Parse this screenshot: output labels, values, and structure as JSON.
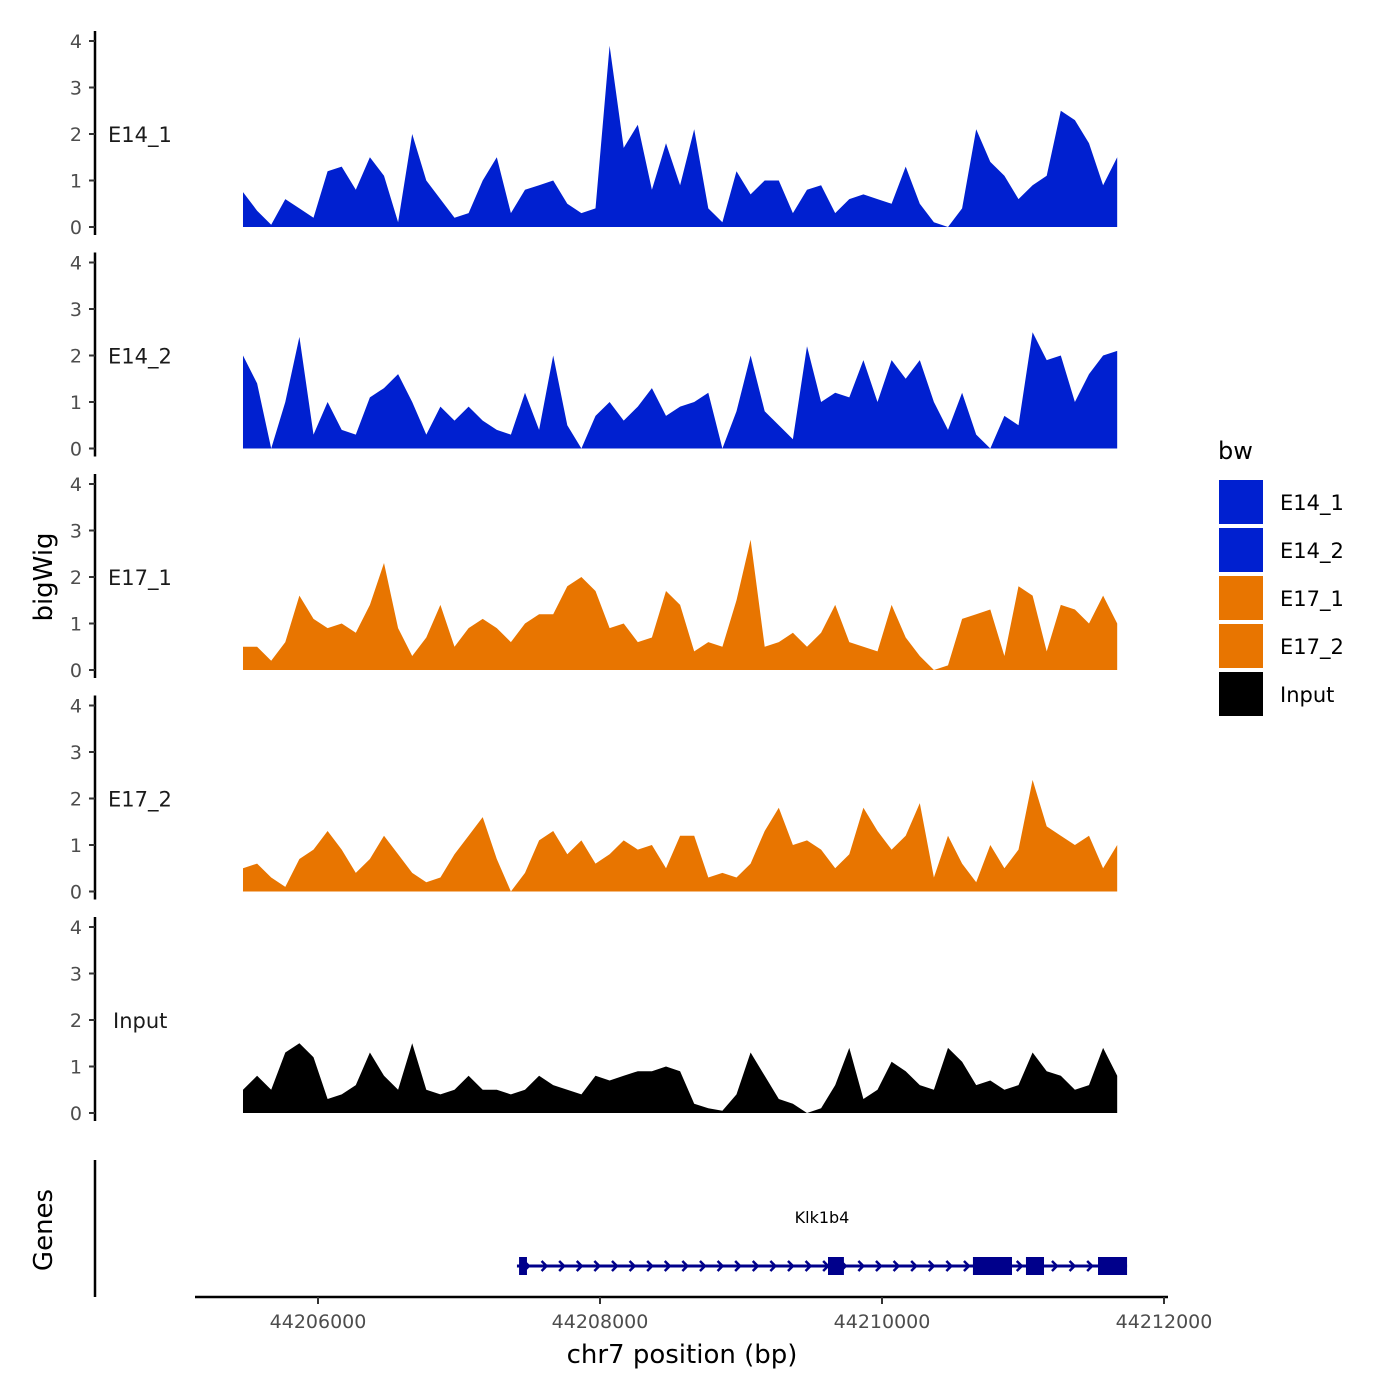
{
  "chart_data": {
    "type": "area",
    "title": "",
    "xlabel": "chr7 position (bp)",
    "ylabel": "bigWig",
    "gene_track_label": "Genes",
    "xlim": [
      44205130,
      44212050
    ],
    "x_ticks": [
      44206000,
      44208000,
      44210000,
      44212000
    ],
    "x_tick_labels": [
      "44206000",
      "44208000",
      "44210000",
      "44212000"
    ],
    "ylim": [
      0,
      4
    ],
    "y_ticks": [
      0,
      1,
      2,
      3,
      4
    ],
    "y_tick_labels": [
      "0",
      "1",
      "2",
      "3",
      "4"
    ],
    "bin_start": 44205468,
    "bin_step": 100,
    "legend": {
      "title": "bw",
      "position": "right"
    },
    "series": [
      {
        "name": "E14_1",
        "color": "#0020d0",
        "values": [
          0.75,
          0.35,
          0.05,
          0.6,
          0.4,
          0.2,
          1.2,
          1.3,
          0.8,
          1.5,
          1.1,
          0.1,
          2.0,
          1.0,
          0.6,
          0.2,
          0.3,
          1.0,
          1.5,
          0.3,
          0.8,
          0.9,
          1.0,
          0.5,
          0.3,
          0.4,
          3.9,
          1.7,
          2.2,
          0.8,
          1.8,
          0.9,
          2.1,
          0.4,
          0.1,
          1.2,
          0.7,
          1.0,
          1.0,
          0.3,
          0.8,
          0.9,
          0.3,
          0.6,
          0.7,
          0.6,
          0.5,
          1.3,
          0.5,
          0.1,
          0,
          0.4,
          2.1,
          1.4,
          1.1,
          0.6,
          0.9,
          1.1,
          2.5,
          2.3,
          1.8,
          0.9,
          1.5
        ]
      },
      {
        "name": "E14_2",
        "color": "#0020d0",
        "values": [
          2.0,
          1.4,
          0,
          1.0,
          2.4,
          0.3,
          1.0,
          0.4,
          0.3,
          1.1,
          1.3,
          1.6,
          1.0,
          0.3,
          0.9,
          0.6,
          0.9,
          0.6,
          0.4,
          0.3,
          1.2,
          0.4,
          2.0,
          0.5,
          0,
          0.7,
          1.0,
          0.6,
          0.9,
          1.3,
          0.7,
          0.9,
          1.0,
          1.2,
          0,
          0.8,
          2.0,
          0.8,
          0.5,
          0.2,
          2.2,
          1.0,
          1.2,
          1.1,
          1.9,
          1.0,
          1.9,
          1.5,
          1.9,
          1.0,
          0.4,
          1.2,
          0.3,
          0,
          0.7,
          0.5,
          2.5,
          1.9,
          2.0,
          1.0,
          1.6,
          2.0,
          2.1
        ]
      },
      {
        "name": "E17_1",
        "color": "#e87500",
        "values": [
          0.5,
          0.5,
          0.2,
          0.6,
          1.6,
          1.1,
          0.9,
          1.0,
          0.8,
          1.4,
          2.3,
          0.9,
          0.3,
          0.7,
          1.4,
          0.5,
          0.9,
          1.1,
          0.9,
          0.6,
          1.0,
          1.2,
          1.2,
          1.8,
          2.0,
          1.7,
          0.9,
          1.0,
          0.6,
          0.7,
          1.7,
          1.4,
          0.4,
          0.6,
          0.5,
          1.5,
          2.8,
          0.5,
          0.6,
          0.8,
          0.5,
          0.8,
          1.4,
          0.6,
          0.5,
          0.4,
          1.4,
          0.7,
          0.3,
          0,
          0.1,
          1.1,
          1.2,
          1.3,
          0.3,
          1.8,
          1.6,
          0.4,
          1.4,
          1.3,
          1.0,
          1.6,
          1.0
        ]
      },
      {
        "name": "E17_2",
        "color": "#e87500",
        "values": [
          0.5,
          0.6,
          0.3,
          0.1,
          0.7,
          0.9,
          1.3,
          0.9,
          0.4,
          0.7,
          1.2,
          0.8,
          0.4,
          0.2,
          0.3,
          0.8,
          1.2,
          1.6,
          0.7,
          0,
          0.4,
          1.1,
          1.3,
          0.8,
          1.1,
          0.6,
          0.8,
          1.1,
          0.9,
          1.0,
          0.5,
          1.2,
          1.2,
          0.3,
          0.4,
          0.3,
          0.6,
          1.3,
          1.8,
          1.0,
          1.1,
          0.9,
          0.5,
          0.8,
          1.8,
          1.3,
          0.9,
          1.2,
          1.9,
          0.3,
          1.2,
          0.6,
          0.2,
          1.0,
          0.5,
          0.9,
          2.4,
          1.4,
          1.2,
          1.0,
          1.2,
          0.5,
          1.0
        ]
      },
      {
        "name": "Input",
        "color": "#000000",
        "values": [
          0.5,
          0.8,
          0.5,
          1.3,
          1.5,
          1.2,
          0.3,
          0.4,
          0.6,
          1.3,
          0.8,
          0.5,
          1.5,
          0.5,
          0.4,
          0.5,
          0.8,
          0.5,
          0.5,
          0.4,
          0.5,
          0.8,
          0.6,
          0.5,
          0.4,
          0.8,
          0.7,
          0.8,
          0.9,
          0.9,
          1.0,
          0.9,
          0.2,
          0.1,
          0.05,
          0.4,
          1.3,
          0.8,
          0.3,
          0.2,
          0,
          0.1,
          0.6,
          1.4,
          0.3,
          0.5,
          1.1,
          0.9,
          0.6,
          0.5,
          1.4,
          1.1,
          0.6,
          0.7,
          0.5,
          0.6,
          1.3,
          0.9,
          0.8,
          0.5,
          0.6,
          1.4,
          0.8
        ]
      }
    ],
    "genes": [
      {
        "name": "Klk1b4",
        "strand": "+",
        "start": 44207411,
        "end": 44211738,
        "color": "#00008b",
        "exons": [
          [
            44207426,
            44207482
          ],
          [
            44209617,
            44209730
          ],
          [
            44210645,
            44210922
          ],
          [
            44211021,
            44211149
          ],
          [
            44211532,
            44211738
          ]
        ]
      }
    ]
  }
}
